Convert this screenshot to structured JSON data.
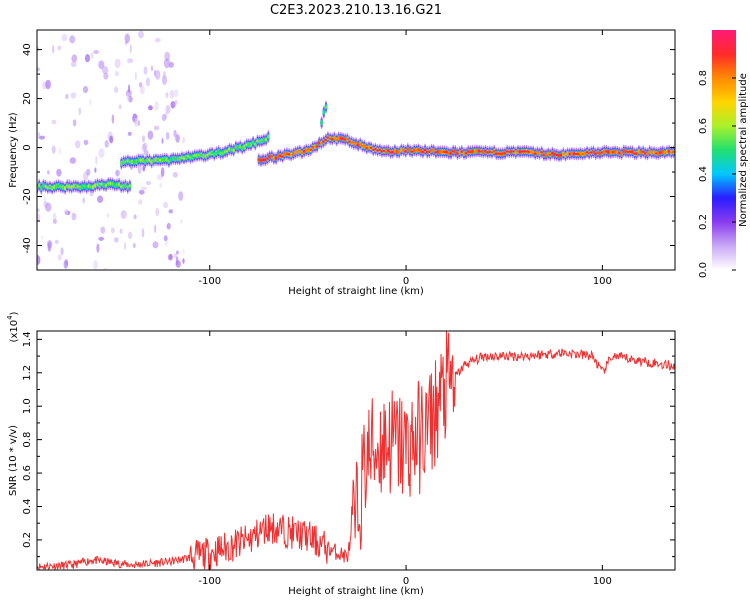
{
  "figure_title": "C2E3.2023.210.13.16.G21",
  "colors": {
    "snr_line": "#ee3030",
    "spectrum_colormap": [
      "#ffffff",
      "#c9a8f5",
      "#8a3cf0",
      "#2a1cff",
      "#00c8ff",
      "#22e070",
      "#aaf02a",
      "#ffd400",
      "#ff8a00",
      "#ff2a2a",
      "#ff1a78"
    ]
  },
  "chart_data": [
    {
      "type": "heatmap",
      "title": "",
      "xlabel": "Height of straight line (km)",
      "ylabel": "Frequency (Hz)",
      "xlim": [
        -188,
        137
      ],
      "ylim": [
        -50,
        48
      ],
      "xticks": [
        -100,
        0,
        100
      ],
      "yticks": [
        -40,
        -20,
        0,
        20,
        40
      ],
      "colorbar": {
        "label": "Normalized spectral amplitude",
        "range": [
          0,
          1
        ],
        "ticks": [
          "0.0",
          "0.2",
          "0.4",
          "0.6",
          "0.8"
        ]
      },
      "ridge_segments": [
        {
          "x": [
            -188,
            -165,
            -150,
            -140
          ],
          "freq_hz": [
            -16,
            -16,
            -15,
            -16
          ]
        },
        {
          "x": [
            -145,
            -120,
            -100,
            -80,
            -70
          ],
          "freq_hz": [
            -6,
            -5,
            -3,
            1,
            4
          ]
        },
        {
          "x": [
            -75,
            -60,
            -50,
            -45,
            -40,
            -30,
            -20,
            -10,
            0,
            20,
            60,
            80,
            95,
            100,
            137
          ],
          "freq_hz": [
            -5,
            -3,
            -1,
            1,
            4,
            3,
            0,
            -2,
            -1,
            -2,
            -2,
            -3,
            -2,
            -2,
            -2
          ]
        },
        {
          "x": [
            -43,
            -42,
            -41,
            -40
          ],
          "freq_hz": [
            10,
            14,
            17,
            16
          ]
        }
      ]
    },
    {
      "type": "line",
      "title": "",
      "xlabel": "Height of straight line (km)",
      "ylabel": "SNR (10 * v/v)",
      "y_scale_label": "(x10",
      "y_scale_exponent": "4",
      "y_scale_close": ")",
      "xlim": [
        -188,
        137
      ],
      "ylim": [
        0.02,
        1.45
      ],
      "xticks": [
        -100,
        0,
        100
      ],
      "yticks": [
        0.2,
        0.4,
        0.6,
        0.8,
        1.0,
        1.2,
        1.4
      ],
      "series": [
        {
          "x": [
            -188,
            -170,
            -160,
            -140,
            -120,
            -100,
            -80,
            -70,
            -50,
            -40,
            -30,
            -25,
            -20,
            -15,
            -10,
            0,
            10,
            20,
            30,
            40,
            60,
            80,
            95,
            100,
            105,
            120,
            137
          ],
          "y": [
            0.04,
            0.05,
            0.08,
            0.05,
            0.07,
            0.12,
            0.2,
            0.28,
            0.22,
            0.15,
            0.1,
            0.35,
            0.7,
            0.75,
            0.8,
            0.75,
            0.85,
            1.1,
            1.25,
            1.3,
            1.3,
            1.32,
            1.3,
            1.2,
            1.3,
            1.27,
            1.24
          ]
        }
      ]
    }
  ]
}
